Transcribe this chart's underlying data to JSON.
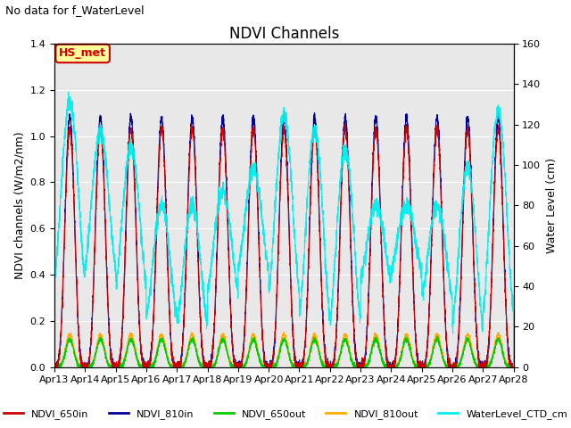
{
  "title": "NDVI Channels",
  "suptitle": "No data for f_WaterLevel",
  "ylabel_left": "NDVI channels (W/m2/nm)",
  "ylabel_right": "Water Level (cm)",
  "xlim_days": [
    0,
    15
  ],
  "ylim_left": [
    0.0,
    1.4
  ],
  "ylim_right": [
    0,
    160
  ],
  "bg_color": "#e8e8e8",
  "legend_label": "HS_met",
  "colors": {
    "NDVI_650in": "#cc0000",
    "NDVI_810in": "#000099",
    "NDVI_650out": "#00cc00",
    "NDVI_810out": "#ffaa00",
    "WaterLevel_CTD_cm": "#00eeee"
  },
  "legend_entries": [
    "NDVI_650in",
    "NDVI_810in",
    "NDVI_650out",
    "NDVI_810out",
    "WaterLevel_CTD_cm"
  ],
  "tick_labels": [
    "Apr 13",
    "Apr 14",
    "Apr 15",
    "Apr 16",
    "Apr 17",
    "Apr 18",
    "Apr 19",
    "Apr 20",
    "Apr 21",
    "Apr 22",
    "Apr 23",
    "Apr 24",
    "Apr 25",
    "Apr 26",
    "Apr 27",
    "Apr 28"
  ],
  "right_ticks": [
    0,
    20,
    40,
    60,
    80,
    100,
    120,
    140,
    160
  ],
  "left_ticks": [
    0.0,
    0.2,
    0.4,
    0.6,
    0.8,
    1.0,
    1.2,
    1.4
  ]
}
